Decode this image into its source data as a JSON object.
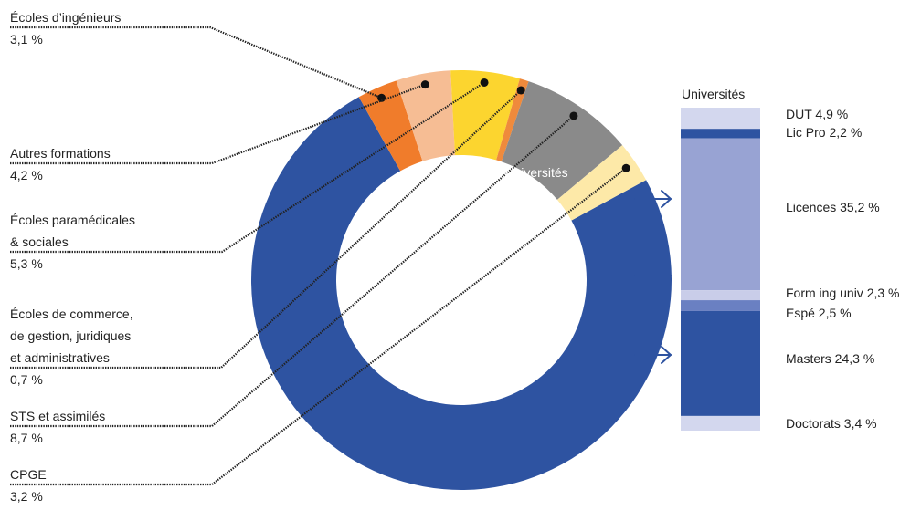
{
  "chart_data": [
    {
      "type": "pie",
      "variant": "donut",
      "slices": [
        {
          "label": "Universités",
          "value": 74.8,
          "display": "74,8 %",
          "color": "#2e53a1"
        },
        {
          "label": "Écoles d’ingénieurs",
          "value": 3.1,
          "display": "3,1 %",
          "color": "#f07c2b"
        },
        {
          "label": "Autres formations",
          "value": 4.2,
          "display": "4,2 %",
          "color": "#f6bd94"
        },
        {
          "label": "Écoles paramédicales & sociales",
          "value": 5.3,
          "display": "5,3 %",
          "color": "#fcd52f"
        },
        {
          "label": "Écoles de commerce, de gestion, juridiques et administratives",
          "value": 0.7,
          "display": "0,7 %",
          "color": "#ef8a3c"
        },
        {
          "label": "STS et assimilés",
          "value": 8.7,
          "display": "8,7 %",
          "color": "#8a8a8a"
        },
        {
          "label": "CPGE",
          "value": 3.2,
          "display": "3,2 %",
          "color": "#fde9a8"
        }
      ]
    },
    {
      "type": "bar",
      "variant": "stacked-100",
      "title": "Universités",
      "segments": [
        {
          "label": "DUT",
          "value": 4.9,
          "display": "DUT 4,9 %",
          "color": "#d3d7ee"
        },
        {
          "label": "Lic Pro",
          "value": 2.2,
          "display": "Lic Pro 2,2 %",
          "color": "#2e53a1"
        },
        {
          "label": "Licences",
          "value": 35.2,
          "display": "Licences 35,2 %",
          "color": "#98a3d3"
        },
        {
          "label": "Form ing univ",
          "value": 2.3,
          "display": "Form ing univ 2,3 %",
          "color": "#c9cde9"
        },
        {
          "label": "Espé",
          "value": 2.5,
          "display": "Espé 2,5 %",
          "color": "#6a80c2"
        },
        {
          "label": "Masters",
          "value": 24.3,
          "display": "Masters 24,3 %",
          "color": "#2e53a1"
        },
        {
          "label": "Doctorats",
          "value": 3.4,
          "display": "Doctorats 3,4 %",
          "color": "#d3d7ee"
        }
      ]
    }
  ],
  "colors": {
    "arrow": "#2e53a1",
    "leader": "#222222",
    "hole": "#ffffff"
  }
}
